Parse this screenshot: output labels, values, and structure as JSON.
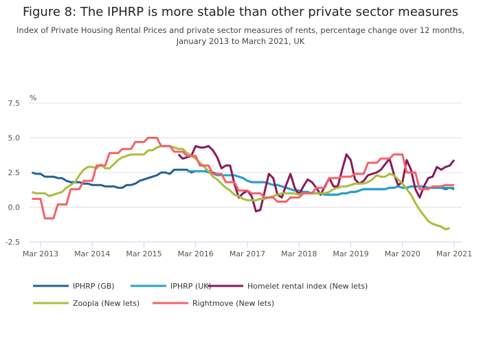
{
  "chart_data": {
    "type": "line",
    "title": "Figure 8: The IPHRP is more stable than other private sector measures",
    "subtitle_line1": "Index of Private Housing Rental Prices and private sector measures of rents, percentage change over 12 months,",
    "subtitle_line2": "January 2013 to March 2021, UK",
    "ylabel": "%",
    "ylim": [
      -2.5,
      7.5
    ],
    "yticks": [
      "7.5",
      "5.0",
      "2.5",
      "0.0",
      "-2.5"
    ],
    "ytick_values": [
      7.5,
      5.0,
      2.5,
      0.0,
      -2.5
    ],
    "xticks": [
      "Mar 2013",
      "Mar 2014",
      "Mar 2015",
      "Mar 2016",
      "Mar 2017",
      "Mar 2018",
      "Mar 2019",
      "Mar 2020",
      "Mar 2021"
    ],
    "x_start": "Jan 2013",
    "x_frequency": "monthly",
    "grid": true,
    "legend_placement": "bottom",
    "series": [
      {
        "name": "IPHRP (GB)",
        "color": "#206095",
        "start_month_index": 0,
        "values": [
          2.5,
          2.4,
          2.4,
          2.2,
          2.2,
          2.2,
          2.1,
          2.1,
          1.9,
          1.8,
          1.8,
          1.8,
          1.7,
          1.7,
          1.6,
          1.6,
          1.6,
          1.5,
          1.5,
          1.5,
          1.4,
          1.4,
          1.6,
          1.6,
          1.7,
          1.9,
          2.0,
          2.1,
          2.2,
          2.3,
          2.5,
          2.5,
          2.4,
          2.7,
          2.7,
          2.7,
          2.7,
          2.5,
          2.6,
          2.6,
          2.6,
          2.6,
          2.5,
          2.4,
          2.3,
          2.3,
          2.3,
          2.3,
          2.2,
          2.1,
          1.9,
          1.8,
          1.8,
          1.8,
          1.8,
          1.7,
          1.6,
          1.6,
          1.5,
          1.4,
          1.3,
          1.2,
          1.2,
          1.1,
          1.1,
          1.0,
          1.0,
          1.0,
          0.9,
          0.9,
          0.9,
          0.9,
          1.0,
          1.0,
          1.1,
          1.1,
          1.2,
          1.3,
          1.3,
          1.3,
          1.3,
          1.3,
          1.3,
          1.4,
          1.4,
          1.5,
          1.4,
          1.4,
          1.5,
          1.5,
          1.5,
          1.5,
          1.4,
          1.4,
          1.4,
          1.4,
          1.3,
          1.4,
          1.3
        ]
      },
      {
        "name": "IPHRP (UK)",
        "color": "#27a0cc",
        "start_month_index": 36,
        "values": [
          2.6,
          2.6,
          2.6,
          2.6,
          2.6,
          2.5,
          2.4,
          2.3,
          2.3,
          2.3,
          2.3,
          2.3,
          2.2,
          2.1,
          1.9,
          1.8,
          1.8,
          1.8,
          1.8,
          1.7,
          1.6,
          1.6,
          1.5,
          1.4,
          1.3,
          1.2,
          1.2,
          1.1,
          1.1,
          1.0,
          1.0,
          1.0,
          0.9,
          0.9,
          0.9,
          0.9,
          1.0,
          1.0,
          1.1,
          1.1,
          1.2,
          1.3,
          1.3,
          1.3,
          1.3,
          1.3,
          1.3,
          1.4,
          1.4,
          1.5,
          1.4,
          1.4,
          1.5,
          1.5,
          1.5,
          1.5,
          1.4,
          1.4,
          1.4,
          1.4,
          1.4,
          1.4,
          1.4
        ]
      },
      {
        "name": "Homelet rental index (New lets)",
        "color": "#871a5b",
        "start_month_index": 34,
        "values": [
          3.8,
          3.5,
          3.6,
          3.7,
          4.4,
          4.3,
          4.3,
          4.4,
          4.1,
          3.6,
          2.8,
          3.0,
          3.0,
          1.7,
          0.7,
          1.0,
          1.2,
          0.8,
          -0.3,
          -0.2,
          1.1,
          2.4,
          2.1,
          0.9,
          0.7,
          1.6,
          2.4,
          1.4,
          0.9,
          1.5,
          2.0,
          1.8,
          1.4,
          0.9,
          1.5,
          2.1,
          1.5,
          1.5,
          2.7,
          3.8,
          3.4,
          2.0,
          1.7,
          1.9,
          2.3,
          2.4,
          2.5,
          2.7,
          3.1,
          3.5,
          2.4,
          1.6,
          1.8,
          3.4,
          2.7,
          1.3,
          0.7,
          1.5,
          2.1,
          2.2,
          2.9,
          2.7,
          2.9,
          3.0,
          3.4
        ]
      },
      {
        "name": "Zoopla (New lets)",
        "color": "#a8bd3a",
        "start_month_index": 0,
        "values": [
          1.1,
          1.0,
          1.0,
          1.0,
          0.8,
          0.9,
          1.0,
          1.1,
          1.4,
          1.6,
          1.8,
          2.3,
          2.7,
          2.9,
          2.9,
          2.8,
          3.1,
          2.8,
          2.8,
          3.1,
          3.4,
          3.6,
          3.7,
          3.8,
          3.8,
          3.8,
          3.8,
          4.1,
          4.1,
          4.3,
          4.4,
          4.4,
          4.4,
          4.3,
          4.2,
          4.2,
          3.9,
          3.7,
          3.5,
          3.2,
          2.9,
          2.6,
          2.2,
          2.0,
          1.7,
          1.4,
          1.2,
          0.9,
          0.8,
          0.6,
          0.5,
          0.5,
          0.5,
          0.6,
          0.6,
          0.7,
          0.8,
          0.9,
          1.0,
          1.0,
          1.0,
          1.0,
          0.9,
          1.0,
          1.0,
          1.0,
          1.0,
          1.0,
          1.0,
          1.1,
          1.3,
          1.4,
          1.5,
          1.5,
          1.6,
          1.7,
          1.7,
          1.7,
          1.8,
          2.0,
          2.3,
          2.2,
          2.2,
          2.4,
          2.3,
          2.0,
          1.7,
          1.3,
          0.9,
          0.3,
          -0.2,
          -0.6,
          -1.0,
          -1.2,
          -1.3,
          -1.4,
          -1.6,
          -1.5
        ]
      },
      {
        "name": "Rightmove (New lets)",
        "color": "#f66068",
        "start_month_index": 0,
        "values": [
          0.6,
          0.6,
          0.6,
          -0.8,
          -0.8,
          -0.8,
          0.2,
          0.2,
          0.2,
          1.3,
          1.3,
          1.3,
          1.9,
          1.9,
          1.9,
          3.0,
          3.0,
          3.0,
          3.9,
          3.9,
          3.9,
          4.2,
          4.2,
          4.2,
          4.7,
          4.7,
          4.7,
          5.0,
          5.0,
          5.0,
          4.4,
          4.4,
          4.4,
          4.0,
          4.0,
          4.0,
          3.7,
          3.7,
          3.7,
          3.0,
          3.0,
          3.0,
          2.4,
          2.4,
          2.4,
          1.8,
          1.8,
          1.8,
          1.2,
          1.2,
          1.2,
          1.0,
          1.0,
          1.0,
          0.7,
          0.7,
          0.7,
          0.4,
          0.4,
          0.4,
          0.7,
          0.7,
          0.7,
          1.0,
          1.0,
          1.0,
          1.4,
          1.4,
          1.4,
          2.1,
          2.1,
          2.1,
          2.2,
          2.2,
          2.2,
          2.4,
          2.4,
          2.4,
          3.2,
          3.2,
          3.2,
          3.5,
          3.5,
          3.5,
          3.8,
          3.8,
          3.8,
          2.5,
          2.5,
          2.5,
          1.3,
          1.3,
          1.3,
          1.5,
          1.5,
          1.5,
          1.6,
          1.6,
          1.6
        ]
      }
    ]
  }
}
